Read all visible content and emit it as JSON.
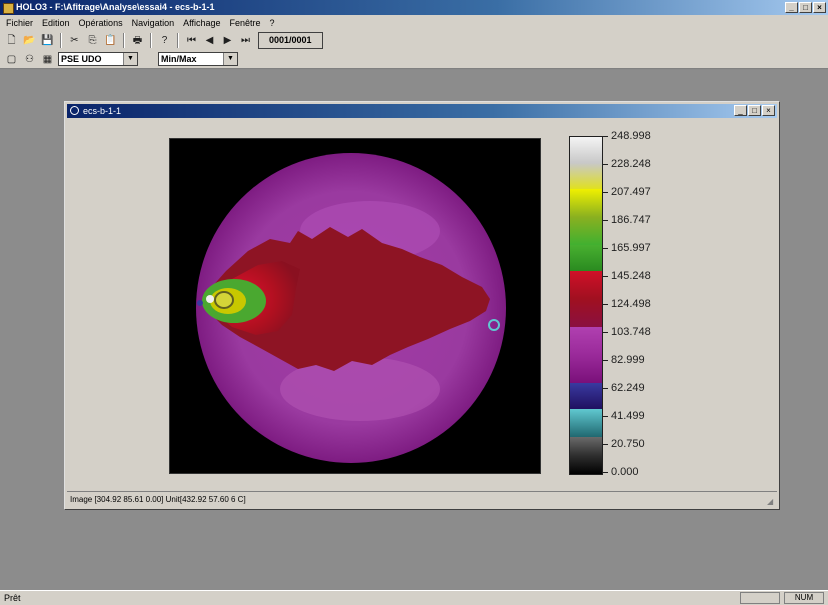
{
  "app": {
    "title": "HOLO3 - F:\\Afitrage\\Analyse\\essai4 - ecs-b-1-1"
  },
  "menu": [
    "Fichier",
    "Edition",
    "Opérations",
    "Navigation",
    "Affichage",
    "Fenêtre",
    "?"
  ],
  "toolbar": {
    "counter": "0001/0001"
  },
  "toolbar2": {
    "dataset_select": "PSE UDO",
    "scale_select": "Min/Max"
  },
  "child": {
    "title": "ecs-b-1-1",
    "status": "Image [304.92 85.61 0.00] Unit[432.92 57.60 6 C]"
  },
  "colorbar": {
    "labels": [
      "248.998",
      "228.248",
      "207.497",
      "186.747",
      "165.997",
      "145.248",
      "124.498",
      "103.748",
      "82.999",
      "62.249",
      "41.499",
      "20.750",
      "0.000"
    ],
    "stops": [
      "#f4f4f4",
      "#c8c8c8",
      "#e8e800",
      "#8ab020",
      "#48b030",
      "#2a8a20",
      "#d01028",
      "#8a1020",
      "#b040b0",
      "#7a107a",
      "#3a3aa0",
      "#201060",
      "#60c8d0",
      "#206870",
      "#6a6a6a",
      "#000000"
    ]
  },
  "statusbar": {
    "left": "Prêt",
    "right": "NUM"
  }
}
